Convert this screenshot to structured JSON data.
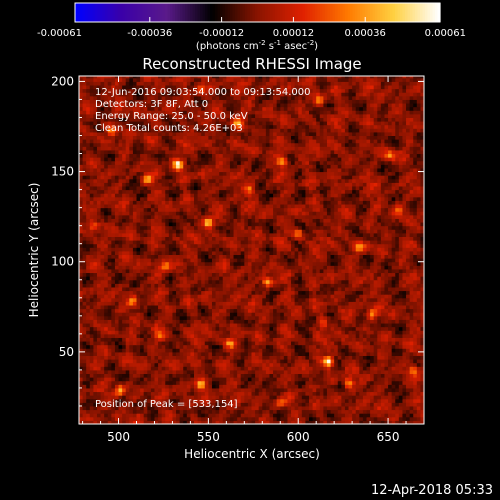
{
  "chart_data": {
    "type": "heatmap",
    "title": "Reconstructed RHESSI Image",
    "xlabel": "Heliocentric X (arcsec)",
    "ylabel": "Heliocentric Y (arcsec)",
    "xlim": [
      478,
      670
    ],
    "ylim": [
      10,
      203
    ],
    "x_ticks": [
      500,
      550,
      600,
      650
    ],
    "y_ticks": [
      50,
      100,
      150,
      200
    ],
    "grid": false,
    "colorbar": {
      "position": "top",
      "range": [
        -0.00061,
        0.00061
      ],
      "tick_values": [
        -0.00061,
        -0.00036,
        -0.00012,
        0.00012,
        0.00036,
        0.00061
      ],
      "tick_labels": [
        "-0.00061",
        "-0.00036",
        "-0.00012",
        "0.00012",
        "0.00036",
        "0.00061"
      ],
      "unit_label": "(photons cm",
      "unit_exp1": "-2",
      "unit_mid": " s",
      "unit_exp2": "-1",
      "unit_mid2": " asec",
      "unit_exp3": "-2",
      "unit_end": ")",
      "colormap": [
        "#0000ff",
        "#3a00a8",
        "#5a1a8a",
        "#000000",
        "#8a1400",
        "#e02000",
        "#ff7a00",
        "#ffd040",
        "#ffffff"
      ]
    },
    "annotations": {
      "time_range": "12-Jun-2016 09:03:54.000 to 09:13:54.000",
      "detectors": "Detectors: 3F 8F, Att 0",
      "energy_range": "Energy Range: 25.0 - 50.0 keV",
      "clean_counts": "Clean    Total counts: 4.26E+03",
      "peak_position": "Position of Peak = [533,154]"
    },
    "peak": {
      "x": 533,
      "y": 154
    },
    "bright_sources": [
      {
        "x": 533,
        "y": 154,
        "v": 0.00061
      },
      {
        "x": 617,
        "y": 45,
        "v": 0.00058
      },
      {
        "x": 583,
        "y": 89,
        "v": 0.00052
      },
      {
        "x": 550,
        "y": 122,
        "v": 0.00046
      },
      {
        "x": 546,
        "y": 32,
        "v": 0.00044
      },
      {
        "x": 628,
        "y": 33,
        "v": 0.00042
      },
      {
        "x": 516,
        "y": 146,
        "v": 0.0004
      },
      {
        "x": 591,
        "y": 156,
        "v": 0.0004
      },
      {
        "x": 501,
        "y": 29,
        "v": 0.00038
      },
      {
        "x": 600,
        "y": 116,
        "v": 0.00038
      },
      {
        "x": 566,
        "y": 177,
        "v": 0.00036
      },
      {
        "x": 634,
        "y": 108,
        "v": 0.00036
      },
      {
        "x": 508,
        "y": 78,
        "v": 0.00034
      },
      {
        "x": 562,
        "y": 55,
        "v": 0.00034
      },
      {
        "x": 651,
        "y": 159,
        "v": 0.00034
      },
      {
        "x": 526,
        "y": 98,
        "v": 0.00032
      },
      {
        "x": 612,
        "y": 190,
        "v": 0.00032
      },
      {
        "x": 496,
        "y": 173,
        "v": 0.0003
      },
      {
        "x": 641,
        "y": 71,
        "v": 0.0003
      },
      {
        "x": 573,
        "y": 140,
        "v": 0.0003
      },
      {
        "x": 656,
        "y": 129,
        "v": 0.00028
      },
      {
        "x": 523,
        "y": 59,
        "v": 0.00028
      },
      {
        "x": 590,
        "y": 22,
        "v": 0.00028
      },
      {
        "x": 545,
        "y": 196,
        "v": 0.00026
      },
      {
        "x": 613,
        "y": 66,
        "v": 0.00026
      },
      {
        "x": 486,
        "y": 120,
        "v": 0.00026
      },
      {
        "x": 664,
        "y": 40,
        "v": 0.00024
      }
    ]
  },
  "footer": {
    "timestamp": "12-Apr-2018 05:33"
  }
}
